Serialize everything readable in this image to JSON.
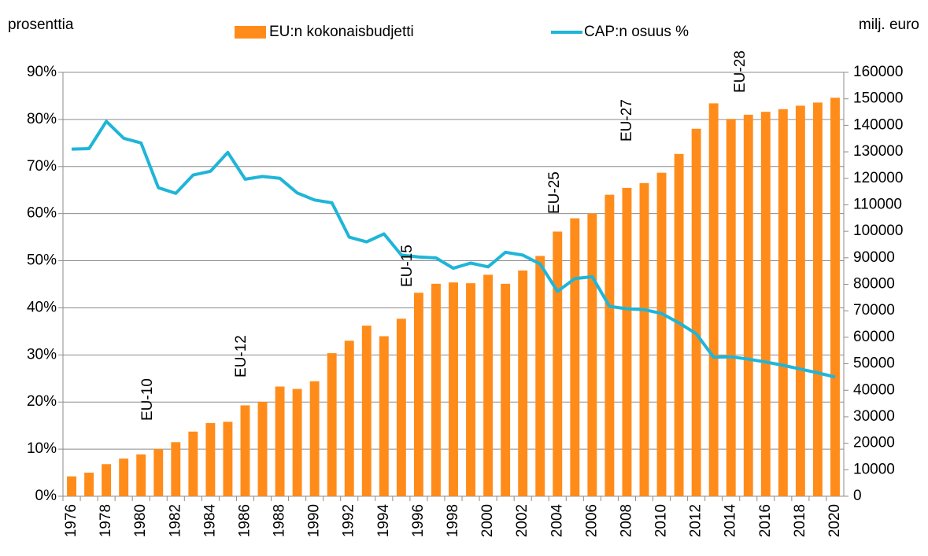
{
  "chart_data": {
    "type": "bar-line",
    "left_axis_label": "prosenttia",
    "right_axis_label": "milj. euro",
    "categories": [
      "1976",
      null,
      "1978",
      null,
      "1980",
      null,
      "1982",
      null,
      "1984",
      null,
      "1986",
      null,
      "1988",
      null,
      "1990",
      null,
      "1992",
      null,
      "1994",
      null,
      "1996",
      null,
      "1998",
      null,
      "2000",
      null,
      "2002",
      null,
      "2004",
      null,
      "2006",
      null,
      "2008",
      null,
      "2010",
      null,
      "2012",
      null,
      "2014",
      null,
      "2016",
      null,
      "2018",
      null,
      "2020"
    ],
    "series": [
      {
        "name": "EU:n kokonaisbudjetti",
        "type": "bar",
        "axis": "y2",
        "color": "#ff8c1a",
        "values": [
          7500,
          8900,
          12100,
          14200,
          15800,
          17800,
          20400,
          24400,
          27600,
          28100,
          34300,
          35600,
          41400,
          40500,
          43400,
          54000,
          58700,
          64400,
          60400,
          67000,
          76800,
          80200,
          80700,
          80400,
          83600,
          80200,
          85200,
          90700,
          99900,
          104900,
          106700,
          113800,
          116400,
          118200,
          122100,
          129200,
          138700,
          148300,
          142400,
          144000,
          145100,
          146100,
          147400,
          148600,
          150400
        ]
      },
      {
        "name": "CAP:n osuus %",
        "type": "line",
        "axis": "y",
        "color": "#1fb5d8",
        "values": [
          73.7,
          73.8,
          79.6,
          76.0,
          75.0,
          65.5,
          64.3,
          68.2,
          69.0,
          73.0,
          67.3,
          67.9,
          67.5,
          64.4,
          62.9,
          62.3,
          55.0,
          54.0,
          55.7,
          51.2,
          50.8,
          50.6,
          48.4,
          49.5,
          48.7,
          51.8,
          51.2,
          49.3,
          43.5,
          46.2,
          46.6,
          40.3,
          39.8,
          39.6,
          38.8,
          36.8,
          34.5,
          29.5,
          29.6,
          29.1,
          28.5,
          27.8,
          27.0,
          26.2,
          25.3
        ]
      }
    ],
    "ylim": [
      0,
      90
    ],
    "yticks": [
      {
        "value": 0,
        "label": "0%"
      },
      {
        "value": 10,
        "label": "10%"
      },
      {
        "value": 20,
        "label": "20%"
      },
      {
        "value": 30,
        "label": "30%"
      },
      {
        "value": 40,
        "label": "40%"
      },
      {
        "value": 50,
        "label": "50%"
      },
      {
        "value": 60,
        "label": "60%"
      },
      {
        "value": 70,
        "label": "70%"
      },
      {
        "value": 80,
        "label": "80%"
      },
      {
        "value": 90,
        "label": "90%"
      }
    ],
    "y2lim": [
      0,
      160000
    ],
    "y2ticks": [
      0,
      10000,
      20000,
      30000,
      40000,
      50000,
      60000,
      70000,
      80000,
      90000,
      100000,
      110000,
      120000,
      130000,
      140000,
      150000,
      160000
    ],
    "grid": true,
    "legend": "top",
    "annotations": [
      "EU-10",
      "EU-12",
      "EU-15",
      "EU-25",
      "EU-27",
      "EU-28"
    ]
  }
}
